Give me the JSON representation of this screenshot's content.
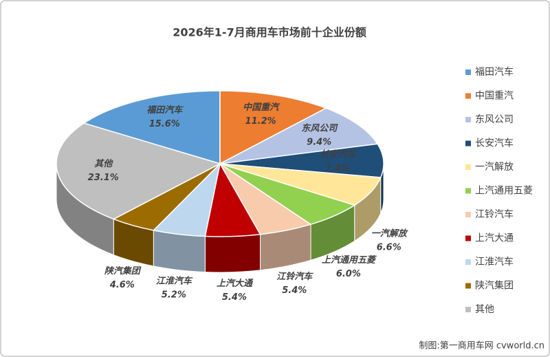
{
  "chart_data": {
    "type": "pie3d",
    "title": "2026年1-7月商用车市场前十企业份额",
    "categories": [
      "福田汽车",
      "中国重汽",
      "东风公司",
      "长安汽车",
      "一汽解放",
      "上汽通用五菱",
      "江铃汽车",
      "上汽大通",
      "江淮汽车",
      "陕汽集团",
      "其他"
    ],
    "values": [
      15.6,
      11.2,
      9.4,
      7.4,
      6.6,
      6.0,
      5.4,
      5.4,
      5.2,
      4.6,
      23.1
    ],
    "value_labels": [
      "15.6%",
      "11.2%",
      "9.4%",
      "7.4%",
      "6.6%",
      "6.0%",
      "5.4%",
      "5.4%",
      "5.2%",
      "4.6%",
      "23.1%"
    ],
    "colors": [
      "#5b9bd5",
      "#ed7d31",
      "#b4c3e4",
      "#1f4e79",
      "#ffe699",
      "#92d050",
      "#f8cbad",
      "#c00000",
      "#bdd7ee",
      "#9c6c00",
      "#bfbfbf"
    ],
    "legend": "right",
    "source": "制图:第一商用车网 cvworld.cn"
  }
}
